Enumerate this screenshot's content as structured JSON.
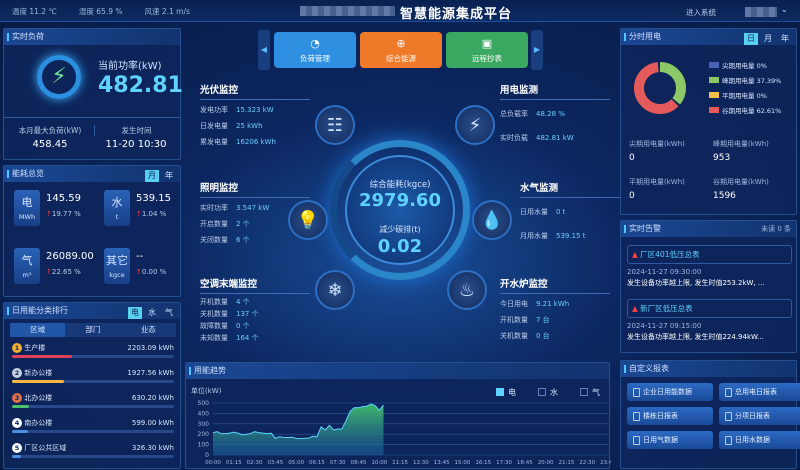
{
  "header": {
    "weather": [
      "温度 11.2 ℃",
      "湿度 65.9 %",
      "风速 2.1 m/s"
    ],
    "title": "智慧能源集成平台",
    "enter_system": "进入系统",
    "user_chevron": "chevron-down-icon"
  },
  "realtime_load": {
    "title": "实时负荷",
    "power_label": "当前功率(kW)",
    "power_value": "482.81",
    "max_label": "本月最大负荷(kW)",
    "max_value": "458.45",
    "time_label": "发生时间",
    "time_value": "11-20 10:30"
  },
  "overview": {
    "title": "能耗总览",
    "toggle": [
      "月",
      "年"
    ],
    "items": [
      {
        "name": "电",
        "unit": "MWh",
        "value": "145.59",
        "change": "19.77 %"
      },
      {
        "name": "水",
        "unit": "t",
        "value": "539.15",
        "change": "1.04 %"
      },
      {
        "name": "气",
        "unit": "m³",
        "value": "26089.00",
        "change": "22.65 %"
      },
      {
        "name": "其它",
        "unit": "kgce",
        "value": "--",
        "change": "0.00 %"
      }
    ]
  },
  "ranking": {
    "title": "日用能分类排行",
    "toggle": [
      "电",
      "水",
      "气"
    ],
    "tabs": [
      "区域",
      "部门",
      "业态"
    ],
    "items": [
      {
        "rank": "1",
        "name": "生产楼",
        "value": "2203.09 kWh",
        "pct": 100,
        "color": "#e0425a"
      },
      {
        "rank": "2",
        "name": "新办公楼",
        "value": "1927.56 kWh",
        "pct": 87,
        "color": "#f5b642"
      },
      {
        "rank": "3",
        "name": "北办公楼",
        "value": "630.20 kWh",
        "pct": 29,
        "color": "#4cbf6a"
      },
      {
        "rank": "4",
        "name": "南办公楼",
        "value": "599.00 kWh",
        "pct": 27,
        "color": "#4a8fe0"
      },
      {
        "rank": "5",
        "name": "厂区公共区域",
        "value": "326.30 kWh",
        "pct": 15,
        "color": "#4a8fe0"
      }
    ]
  },
  "nav": {
    "buttons": [
      {
        "label": "负荷管理",
        "color": "#2f8fe0",
        "icon": "gauge-icon"
      },
      {
        "label": "综合能源",
        "color": "#ef7a2a",
        "icon": "globe-icon"
      },
      {
        "label": "远程抄表",
        "color": "#3aa860",
        "icon": "meter-icon"
      }
    ]
  },
  "center": {
    "total_label": "综合能耗(kgce)",
    "total_value": "2979.60",
    "carbon_label": "减少碳排(t)",
    "carbon_value": "0.02",
    "pv": {
      "title": "光伏监控",
      "rows": [
        [
          "发电功率",
          "15.323 kW"
        ],
        [
          "日发电量",
          "25 kWh"
        ],
        [
          "累发电量",
          "16206 kWh"
        ]
      ]
    },
    "light": {
      "title": "照明监控",
      "rows": [
        [
          "实时功率",
          "3.547 kW"
        ],
        [
          "开启数量",
          "2 个"
        ],
        [
          "关闭数量",
          "6 个"
        ]
      ]
    },
    "ac": {
      "title": "空调末端监控",
      "rows": [
        [
          "开机数量",
          "4 个"
        ],
        [
          "关机数量",
          "137 个"
        ],
        [
          "故障数量",
          "0 个"
        ],
        [
          "未知数量",
          "164 个"
        ]
      ]
    },
    "elec": {
      "title": "用电监测",
      "rows": [
        [
          "总负载率",
          "48.28 %"
        ],
        [
          "实时负载",
          "482.81 kW"
        ]
      ]
    },
    "water": {
      "title": "水气监测",
      "rows": [
        [
          "日用水量",
          "0 t"
        ],
        [
          "月用水量",
          "539.15 t"
        ]
      ]
    },
    "boiler": {
      "title": "开水炉监控",
      "rows": [
        [
          "今日用电",
          "9.21 kWh"
        ],
        [
          "开机数量",
          "7 台"
        ],
        [
          "关机数量",
          "0 台"
        ]
      ]
    }
  },
  "tou": {
    "title": "分时用电",
    "toggle": [
      "日",
      "月",
      "年"
    ],
    "legend": [
      {
        "label": "尖期用电量",
        "pct": "0%",
        "color": "#4a62b8"
      },
      {
        "label": "峰期用电量",
        "pct": "37.39%",
        "color": "#8cc865"
      },
      {
        "label": "平期用电量",
        "pct": "0%",
        "color": "#f5c04a"
      },
      {
        "label": "谷期用电量",
        "pct": "62.61%",
        "color": "#e55a5a"
      }
    ],
    "stats": [
      {
        "label": "尖期用电量(kWh)",
        "value": "0"
      },
      {
        "label": "峰期用电量(kWh)",
        "value": "953"
      },
      {
        "label": "平期用电量(kWh)",
        "value": "0"
      },
      {
        "label": "谷期用电量(kWh)",
        "value": "1596"
      }
    ]
  },
  "alarms": {
    "title": "实时告警",
    "unread": "未读 0 条",
    "items": [
      {
        "name": "厂区401低压总表",
        "time": "2024-11-27 09:30:00",
        "msg": "发生设备功率越上限, 发生时值253.2kW, ..."
      },
      {
        "name": "新厂区低压总表",
        "time": "2024-11-27 09:15:00",
        "msg": "发生设备功率越上限, 发生时值224.94kW..."
      }
    ]
  },
  "reports": {
    "title": "自定义报表",
    "items": [
      "企业日用能数据",
      "总用电日报表",
      "楼栋日报表",
      "分项日报表",
      "日用气数据",
      "日用水数据"
    ]
  },
  "chart_data": {
    "type": "area",
    "title": "用能趋势",
    "ylabel": "单位(kW)",
    "ylim": [
      0,
      500
    ],
    "yticks": [
      0,
      100,
      200,
      300,
      400,
      500
    ],
    "grid": true,
    "legend": [
      "电",
      "水",
      "气"
    ],
    "legend_active": "电",
    "color": "#5fd3ff",
    "xticks": [
      "00:00",
      "01:15",
      "02:30",
      "03:45",
      "05:00",
      "06:15",
      "07:30",
      "08:45",
      "10:00",
      "11:15",
      "12:30",
      "13:45",
      "15:00",
      "16:15",
      "17:30",
      "18:45",
      "20:00",
      "21:15",
      "22:30",
      "23:45"
    ],
    "x": [
      "00:00",
      "00:15",
      "00:30",
      "00:45",
      "01:00",
      "01:15",
      "01:30",
      "01:45",
      "02:00",
      "02:15",
      "02:30",
      "02:45",
      "03:00",
      "03:15",
      "03:30",
      "03:45",
      "04:00",
      "04:15",
      "04:30",
      "04:45",
      "05:00",
      "05:15",
      "05:30",
      "05:45",
      "06:00",
      "06:15",
      "06:30",
      "06:45",
      "07:00",
      "07:15",
      "07:30",
      "07:45",
      "08:00",
      "08:15",
      "08:30",
      "08:45",
      "09:00",
      "09:15",
      "09:30",
      "09:45",
      "10:00",
      "10:15"
    ],
    "values": [
      215,
      225,
      205,
      205,
      210,
      220,
      210,
      195,
      200,
      205,
      225,
      215,
      210,
      205,
      210,
      160,
      175,
      170,
      168,
      172,
      160,
      158,
      160,
      162,
      180,
      175,
      270,
      240,
      285,
      240,
      250,
      250,
      330,
      420,
      455,
      455,
      465,
      470,
      490,
      475,
      430,
      480
    ]
  }
}
